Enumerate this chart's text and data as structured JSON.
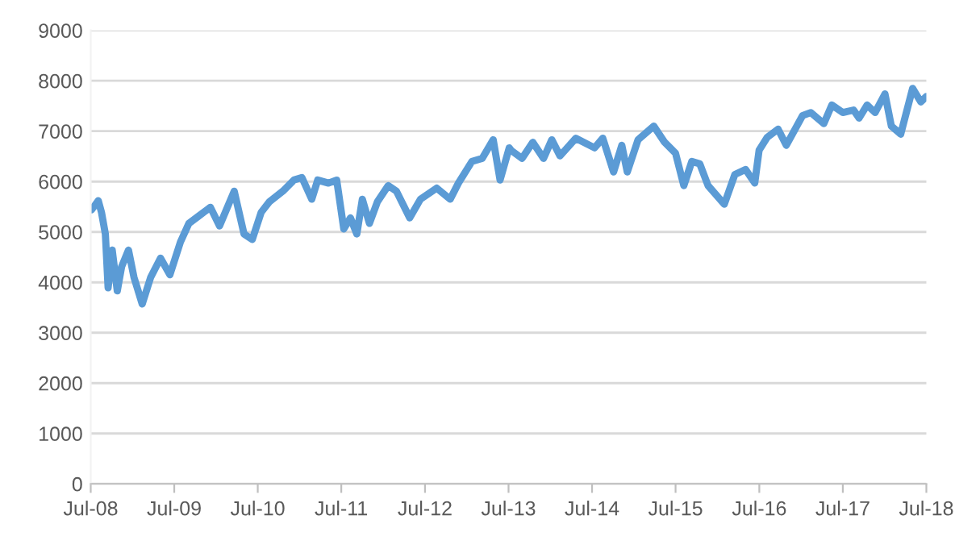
{
  "chart_data": {
    "type": "line",
    "x": [
      "2008-07-05",
      "2008-08-03",
      "2008-08-17",
      "2008-09-03",
      "2008-09-15",
      "2008-10-03",
      "2008-10-25",
      "2008-11-13",
      "2008-12-13",
      "2009-01-06",
      "2009-02-11",
      "2009-03-20",
      "2009-05-02",
      "2009-06-12",
      "2009-07-28",
      "2009-09-03",
      "2009-10-20",
      "2009-12-06",
      "2010-01-15",
      "2010-03-20",
      "2010-05-02",
      "2010-06-07",
      "2010-07-16",
      "2010-08-21",
      "2010-10-19",
      "2010-12-06",
      "2011-01-10",
      "2011-02-22",
      "2011-03-20",
      "2011-05-06",
      "2011-06-11",
      "2011-07-12",
      "2011-08-10",
      "2011-09-07",
      "2011-10-01",
      "2011-11-01",
      "2011-12-06",
      "2012-01-22",
      "2012-02-27",
      "2012-04-25",
      "2012-06-11",
      "2012-08-21",
      "2012-10-19",
      "2012-11-24",
      "2013-01-22",
      "2013-03-08",
      "2013-04-25",
      "2013-05-25",
      "2013-07-04",
      "2013-07-12",
      "2013-08-29",
      "2013-10-15",
      "2013-12-01",
      "2014-01-06",
      "2014-02-11",
      "2014-04-21",
      "2014-07-12",
      "2014-08-17",
      "2014-10-03",
      "2014-11-08",
      "2014-12-02",
      "2015-01-18",
      "2015-03-28",
      "2015-05-14",
      "2015-07-01",
      "2015-08-06",
      "2015-09-10",
      "2015-10-15",
      "2015-11-20",
      "2016-01-30",
      "2016-03-16",
      "2016-05-02",
      "2016-06-11",
      "2016-06-30",
      "2016-08-05",
      "2016-09-21",
      "2016-10-27",
      "2017-01-06",
      "2017-02-11",
      "2017-04-09",
      "2017-05-14",
      "2017-07-01",
      "2017-08-17",
      "2017-09-10",
      "2017-10-15",
      "2017-11-19",
      "2018-01-01",
      "2018-01-29",
      "2018-03-11",
      "2018-05-02",
      "2018-06-07",
      "2018-07-01"
    ],
    "series": [
      {
        "color": "#5b9bd5",
        "values": [
          5440,
          5620,
          5390,
          4960,
          3890,
          4640,
          3830,
          4310,
          4640,
          4100,
          3570,
          4100,
          4480,
          4150,
          4800,
          5170,
          5330,
          5490,
          5120,
          5810,
          4960,
          4850,
          5390,
          5600,
          5810,
          6030,
          6080,
          5650,
          6030,
          5970,
          6030,
          5060,
          5280,
          4960,
          5650,
          5170,
          5600,
          5920,
          5810,
          5280,
          5650,
          5870,
          5650,
          5970,
          6400,
          6460,
          6830,
          6030,
          6670,
          6620,
          6460,
          6780,
          6460,
          6830,
          6510,
          6860,
          6670,
          6860,
          6190,
          6720,
          6190,
          6830,
          7100,
          6780,
          6560,
          5920,
          6400,
          6350,
          5920,
          5550,
          6140,
          6240,
          5970,
          6620,
          6880,
          7040,
          6720,
          7310,
          7370,
          7150,
          7520,
          7370,
          7420,
          7260,
          7520,
          7370,
          7740,
          7100,
          6940,
          7850,
          7580,
          7690
        ]
      }
    ],
    "xlim": [
      "2008-07-01",
      "2018-07-01"
    ],
    "xticks": [
      {
        "value": "2008-07-01",
        "label": "Jul-08"
      },
      {
        "value": "2009-07-01",
        "label": "Jul-09"
      },
      {
        "value": "2010-07-01",
        "label": "Jul-10"
      },
      {
        "value": "2011-07-01",
        "label": "Jul-11"
      },
      {
        "value": "2012-07-01",
        "label": "Jul-12"
      },
      {
        "value": "2013-07-01",
        "label": "Jul-13"
      },
      {
        "value": "2014-07-01",
        "label": "Jul-14"
      },
      {
        "value": "2015-07-01",
        "label": "Jul-15"
      },
      {
        "value": "2016-07-01",
        "label": "Jul-16"
      },
      {
        "value": "2017-07-01",
        "label": "Jul-17"
      },
      {
        "value": "2018-07-01",
        "label": "Jul-18"
      }
    ],
    "ylim": [
      0,
      9000
    ],
    "yticks": [
      0,
      1000,
      2000,
      3000,
      4000,
      5000,
      6000,
      7000,
      8000,
      9000
    ],
    "grid": "y",
    "legend": false,
    "marker": "none",
    "line_style": "solid"
  }
}
